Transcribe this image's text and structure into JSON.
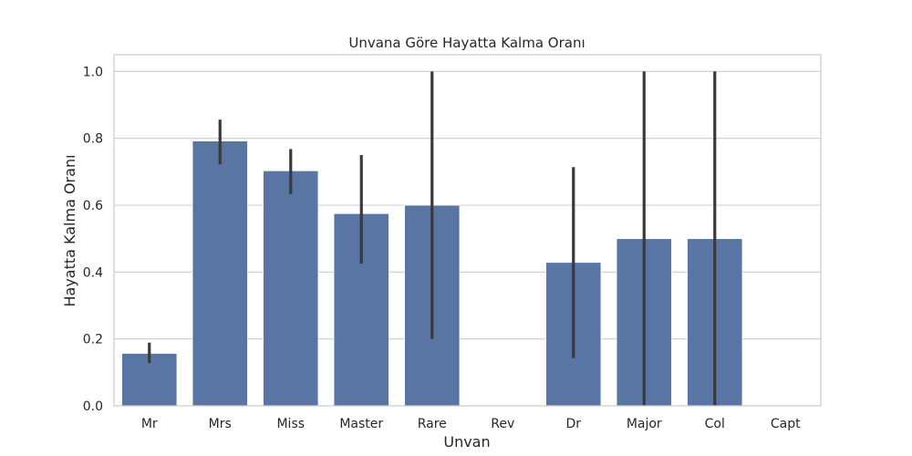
{
  "chart_data": {
    "type": "bar",
    "title": "Unvana Göre Hayatta Kalma Oranı",
    "xlabel": "Unvan",
    "ylabel": "Hayatta Kalma Oranı",
    "categories": [
      "Mr",
      "Mrs",
      "Miss",
      "Master",
      "Rare",
      "Rev",
      "Dr",
      "Major",
      "Col",
      "Capt"
    ],
    "values": [
      0.157,
      0.792,
      0.703,
      0.575,
      0.6,
      0.0,
      0.429,
      0.5,
      0.5,
      0.0
    ],
    "error_low": [
      0.128,
      0.722,
      0.633,
      0.425,
      0.2,
      0.0,
      0.143,
      0.0,
      0.0,
      0.0
    ],
    "error_high": [
      0.189,
      0.856,
      0.768,
      0.75,
      1.0,
      0.0,
      0.714,
      1.0,
      1.0,
      0.0
    ],
    "yticks": [
      "0.0",
      "0.2",
      "0.4",
      "0.6",
      "0.8",
      "1.0"
    ],
    "ylim": [
      0,
      1.05
    ],
    "grid": true,
    "colors": {
      "bar": "#5975a4",
      "error": "#3a3a3a",
      "grid": "#cccccc",
      "frame": "#cccccc"
    }
  }
}
